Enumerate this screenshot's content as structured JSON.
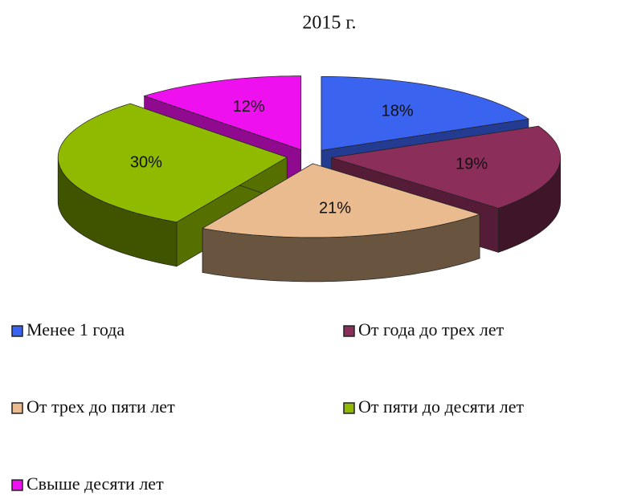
{
  "chart_data": {
    "type": "pie",
    "title": "2015 г.",
    "categories": [
      "Менее 1 года",
      "От года до трех лет",
      "От трех до пяти  лет",
      "От пяти  до десяти лет",
      "Свыше десяти лет"
    ],
    "values": [
      18,
      19,
      21,
      30,
      12
    ],
    "value_labels": [
      "18%",
      "19%",
      "21%",
      "30%",
      "12%"
    ],
    "colors": [
      "#3a63f0",
      "#8c2e5a",
      "#e9bb8f",
      "#8fba00",
      "#ee10ee"
    ]
  }
}
